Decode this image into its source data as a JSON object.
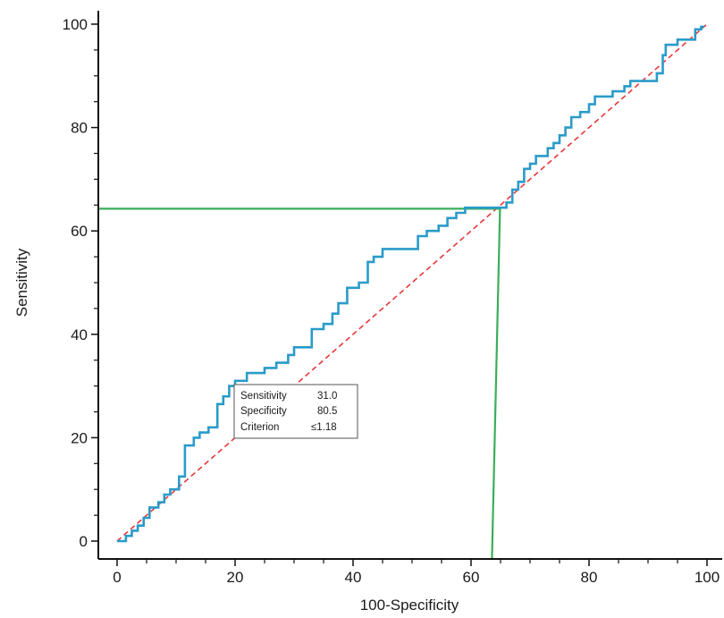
{
  "chart_data": {
    "type": "line",
    "title": "",
    "xlabel": "100-Specificity",
    "ylabel": "Sensitivity",
    "xlim": [
      0,
      100
    ],
    "ylim": [
      0,
      100
    ],
    "x_ticks": [
      0,
      20,
      40,
      60,
      80,
      100
    ],
    "y_ticks": [
      0,
      20,
      40,
      60,
      80,
      100
    ],
    "x_tick_labels": [
      "0",
      "20",
      "40",
      "60",
      "80",
      "100"
    ],
    "y_tick_labels": [
      "0",
      "20",
      "40",
      "60",
      "80",
      "100"
    ],
    "grid": false,
    "legend": "none",
    "series": [
      {
        "style": "step",
        "color": "#2a9bc9",
        "points": [
          [
            0,
            0
          ],
          [
            1.5,
            0
          ],
          [
            1.5,
            1
          ],
          [
            2.5,
            1
          ],
          [
            2.5,
            2
          ],
          [
            3.5,
            2
          ],
          [
            3.5,
            3
          ],
          [
            4.5,
            3
          ],
          [
            4.5,
            4.5
          ],
          [
            5.5,
            4.5
          ],
          [
            5.5,
            6.5
          ],
          [
            7,
            6.5
          ],
          [
            7,
            7.5
          ],
          [
            8,
            7.5
          ],
          [
            8,
            9
          ],
          [
            9,
            9
          ],
          [
            9,
            10
          ],
          [
            10.5,
            10
          ],
          [
            10.5,
            12.5
          ],
          [
            11.5,
            12.5
          ],
          [
            11.5,
            18.5
          ],
          [
            13,
            18.5
          ],
          [
            13,
            20
          ],
          [
            14,
            20
          ],
          [
            14,
            21
          ],
          [
            15.5,
            21
          ],
          [
            15.5,
            22
          ],
          [
            17,
            22
          ],
          [
            17,
            26.5
          ],
          [
            18,
            26.5
          ],
          [
            18,
            28
          ],
          [
            19,
            28
          ],
          [
            19,
            30
          ],
          [
            20,
            30
          ],
          [
            20,
            31
          ],
          [
            22,
            31
          ],
          [
            22,
            32.5
          ],
          [
            25,
            32.5
          ],
          [
            25,
            33.5
          ],
          [
            27,
            33.5
          ],
          [
            27,
            34.5
          ],
          [
            29,
            34.5
          ],
          [
            29,
            36
          ],
          [
            30,
            36
          ],
          [
            30,
            37.5
          ],
          [
            33,
            37.5
          ],
          [
            33,
            41
          ],
          [
            35,
            41
          ],
          [
            35,
            42
          ],
          [
            36.5,
            42
          ],
          [
            36.5,
            44
          ],
          [
            37.5,
            44
          ],
          [
            37.5,
            46
          ],
          [
            39,
            46
          ],
          [
            39,
            49
          ],
          [
            41,
            49
          ],
          [
            41,
            50
          ],
          [
            42.5,
            50
          ],
          [
            42.5,
            54
          ],
          [
            43.5,
            54
          ],
          [
            43.5,
            55
          ],
          [
            45,
            55
          ],
          [
            45,
            56.5
          ],
          [
            51,
            56.5
          ],
          [
            51,
            59
          ],
          [
            52.5,
            59
          ],
          [
            52.5,
            60
          ],
          [
            54.5,
            60
          ],
          [
            54.5,
            61
          ],
          [
            56,
            61
          ],
          [
            56,
            62.5
          ],
          [
            57.5,
            62.5
          ],
          [
            57.5,
            63.5
          ],
          [
            59,
            63.5
          ],
          [
            59,
            64.5
          ],
          [
            61,
            64.5
          ],
          [
            66,
            64.5
          ],
          [
            66,
            65.5
          ],
          [
            67,
            65.5
          ],
          [
            67,
            68
          ],
          [
            68,
            68
          ],
          [
            68,
            69.5
          ],
          [
            69,
            69.5
          ],
          [
            69,
            72
          ],
          [
            70,
            72
          ],
          [
            70,
            73
          ],
          [
            71,
            73
          ],
          [
            71,
            74.5
          ],
          [
            73,
            74.5
          ],
          [
            73,
            76
          ],
          [
            74,
            76
          ],
          [
            74,
            77
          ],
          [
            75,
            77
          ],
          [
            75,
            78.5
          ],
          [
            76,
            78.5
          ],
          [
            76,
            80
          ],
          [
            77,
            80
          ],
          [
            77,
            82
          ],
          [
            78.5,
            82
          ],
          [
            78.5,
            83
          ],
          [
            80,
            83
          ],
          [
            80,
            84.5
          ],
          [
            81,
            84.5
          ],
          [
            81,
            86
          ],
          [
            84,
            86
          ],
          [
            84,
            87
          ],
          [
            86,
            87
          ],
          [
            86,
            88
          ],
          [
            87,
            88
          ],
          [
            87,
            89
          ],
          [
            88,
            89
          ],
          [
            88,
            89
          ],
          [
            91.5,
            89
          ],
          [
            91.5,
            90.5
          ],
          [
            92.5,
            90.5
          ],
          [
            92.5,
            94
          ],
          [
            93,
            94
          ],
          [
            93,
            96
          ],
          [
            95,
            96
          ],
          [
            95,
            97
          ],
          [
            98,
            97
          ],
          [
            98,
            99
          ],
          [
            99,
            99
          ],
          [
            99,
            99.5
          ],
          [
            99.5,
            99.5
          ]
        ]
      },
      {
        "style": "dashed",
        "color": "#e8373a",
        "points": [
          [
            0,
            0
          ],
          [
            100,
            100
          ]
        ]
      }
    ],
    "reference_lines": {
      "color": "#3aae5a",
      "horizontal_y": 64.3,
      "vertical_x": 64.0
    },
    "annotations": [
      {
        "label": "Sensitivity",
        "value": "31.0"
      },
      {
        "label": "Specificity",
        "value": "80.5"
      },
      {
        "label": "Criterion",
        "value": "≤1.18"
      }
    ]
  }
}
